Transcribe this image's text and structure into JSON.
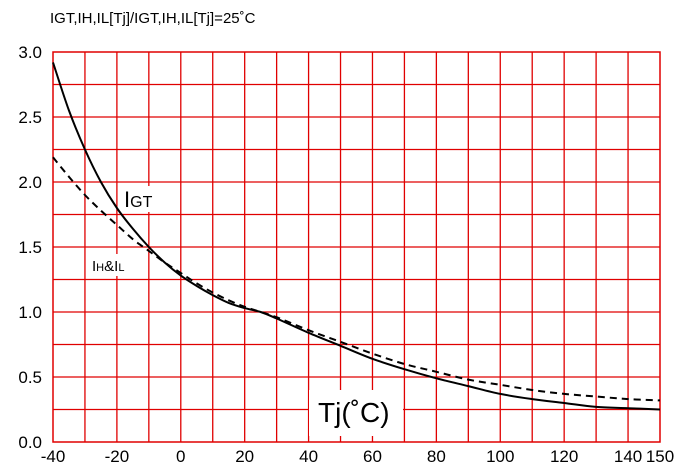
{
  "chart_data": {
    "type": "line",
    "title": "IGT,IH,IL[Tj]/IGT,IH,IL[Tj]=25˚C",
    "xlabel": "Tj(˚C)",
    "ylabel": "",
    "xlim": [
      -40,
      150
    ],
    "ylim": [
      0,
      3.0
    ],
    "x_ticks": [
      -40,
      -20,
      0,
      20,
      40,
      60,
      80,
      100,
      120,
      140,
      150
    ],
    "x_tick_labels": [
      "-40",
      "-20",
      "0",
      "20",
      "40",
      "60",
      "80",
      "100",
      "120",
      "140",
      "150"
    ],
    "y_ticks": [
      0,
      0.5,
      1.0,
      1.5,
      2.0,
      2.5,
      3.0
    ],
    "y_tick_labels": [
      "0.0",
      "0.5",
      "1.0",
      "1.5",
      "2.0",
      "2.5",
      "3.0"
    ],
    "grid": true,
    "grid_color": "#e00000",
    "series": [
      {
        "name": "IGT",
        "label_main": "I",
        "label_sub": "GT",
        "style": "solid",
        "color": "#000000",
        "x": [
          -40,
          -35,
          -30,
          -25,
          -20,
          -15,
          -10,
          -5,
          0,
          5,
          10,
          15,
          20,
          25,
          30,
          40,
          50,
          60,
          70,
          80,
          90,
          100,
          110,
          120,
          130,
          140,
          150
        ],
        "y": [
          2.92,
          2.55,
          2.25,
          2.0,
          1.8,
          1.64,
          1.5,
          1.38,
          1.28,
          1.2,
          1.13,
          1.07,
          1.03,
          1.0,
          0.95,
          0.84,
          0.74,
          0.64,
          0.56,
          0.49,
          0.43,
          0.37,
          0.33,
          0.3,
          0.27,
          0.26,
          0.25
        ]
      },
      {
        "name": "IH&IL",
        "label_main": "I",
        "label_sub": "H",
        "label_mid": "&I",
        "label_sub2": "L",
        "style": "dashed",
        "color": "#000000",
        "x": [
          -40,
          -35,
          -30,
          -25,
          -20,
          -15,
          -10,
          -5,
          0,
          5,
          10,
          15,
          20,
          25,
          30,
          40,
          50,
          60,
          70,
          80,
          90,
          100,
          110,
          120,
          130,
          140,
          150
        ],
        "y": [
          2.19,
          2.04,
          1.9,
          1.78,
          1.67,
          1.56,
          1.47,
          1.38,
          1.3,
          1.22,
          1.15,
          1.09,
          1.04,
          1.0,
          0.96,
          0.86,
          0.77,
          0.68,
          0.6,
          0.54,
          0.48,
          0.44,
          0.4,
          0.37,
          0.35,
          0.33,
          0.32
        ]
      }
    ]
  }
}
